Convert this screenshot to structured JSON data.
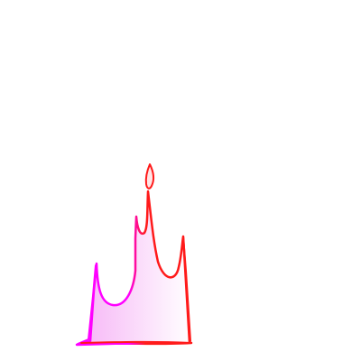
{
  "drawing": {
    "subject": "crown-sketch",
    "colors": {
      "background": "#ffffff",
      "stroke_left": "#ff00ff",
      "stroke_right": "#ff1a1a",
      "fill_left": "#f6b3f6",
      "fill_right": "#ffffff"
    }
  }
}
